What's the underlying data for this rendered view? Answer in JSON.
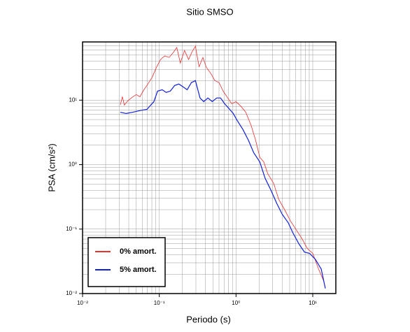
{
  "chart_data": {
    "type": "line",
    "title": "Sitio SMSO",
    "xlabel": "Periodo (s)",
    "ylabel": "PSA (cm/s²)",
    "xscale": "log",
    "yscale": "log",
    "grid": true,
    "legend": "lower left",
    "xlim": [
      0.01,
      20
    ],
    "ylim": [
      0.01,
      80
    ],
    "xticks": [
      {
        "value": 0.01,
        "label": "10⁻²"
      },
      {
        "value": 0.1,
        "label": "10⁻¹"
      },
      {
        "value": 1,
        "label": "10⁰"
      },
      {
        "value": 10,
        "label": "10¹"
      }
    ],
    "yticks": [
      {
        "value": 0.01,
        "label": "10⁻²"
      },
      {
        "value": 0.1,
        "label": "10⁻¹"
      },
      {
        "value": 1,
        "label": "10⁰"
      },
      {
        "value": 10,
        "label": "10¹"
      }
    ],
    "series": [
      {
        "name": "0% amort.",
        "color": "#e83030",
        "x": [
          0.031,
          0.033,
          0.035,
          0.038,
          0.043,
          0.05,
          0.056,
          0.063,
          0.071,
          0.081,
          0.092,
          0.104,
          0.118,
          0.134,
          0.152,
          0.169,
          0.188,
          0.213,
          0.241,
          0.267,
          0.296,
          0.33,
          0.37,
          0.41,
          0.47,
          0.53,
          0.6,
          0.68,
          0.78,
          0.88,
          1.0,
          1.16,
          1.34,
          1.58,
          1.8,
          2.04,
          2.3,
          2.6,
          3.1,
          3.6,
          4.3,
          5.1,
          6.0,
          7.2,
          8.5,
          10,
          11.9,
          14.1
        ],
        "values": [
          8.4,
          11.3,
          8.4,
          9.5,
          10.8,
          12.2,
          11.3,
          14.5,
          17.8,
          22.8,
          32.4,
          42.7,
          48.5,
          46,
          54.8,
          65.5,
          37.7,
          59,
          42.7,
          56,
          68.7,
          33,
          46,
          32.4,
          25.9,
          20.1,
          18.7,
          13.8,
          10.8,
          8.8,
          9.5,
          8.0,
          6.5,
          4.0,
          2.4,
          1.3,
          1.1,
          0.72,
          0.51,
          0.29,
          0.2,
          0.135,
          0.1,
          0.072,
          0.05,
          0.042,
          0.024,
          0.015
        ]
      },
      {
        "name": "5% amort.",
        "color": "#1020d8",
        "x": [
          0.031,
          0.037,
          0.045,
          0.056,
          0.069,
          0.085,
          0.095,
          0.109,
          0.123,
          0.139,
          0.159,
          0.18,
          0.204,
          0.231,
          0.262,
          0.296,
          0.34,
          0.38,
          0.43,
          0.49,
          0.56,
          0.63,
          0.71,
          0.81,
          0.92,
          1.04,
          1.23,
          1.45,
          1.7,
          2.04,
          2.4,
          2.8,
          3.4,
          4.0,
          4.8,
          5.5,
          6.6,
          7.8,
          9.1,
          10.8,
          12.9,
          14.6
        ],
        "values": [
          6.5,
          6.2,
          6.5,
          6.9,
          7.2,
          9.5,
          13.8,
          14.5,
          13.2,
          13.8,
          16.9,
          17.8,
          16.1,
          14.5,
          18.7,
          20.1,
          10.8,
          9.5,
          10.8,
          9.5,
          10.8,
          10.8,
          8.8,
          7.4,
          6.2,
          4.8,
          3.5,
          2.4,
          1.53,
          1.1,
          0.61,
          0.42,
          0.25,
          0.17,
          0.125,
          0.088,
          0.059,
          0.044,
          0.042,
          0.034,
          0.024,
          0.012
        ]
      }
    ]
  }
}
